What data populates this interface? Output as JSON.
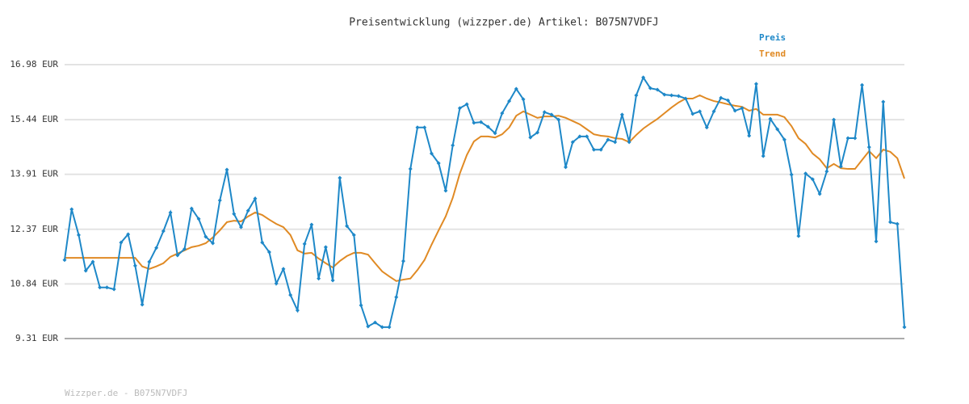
{
  "chart_data": {
    "type": "line",
    "title": "Preisentwicklung (wizzper.de) Artikel: B075N7VDFJ",
    "ylim": [
      9.31,
      16.98
    ],
    "yticks": [
      {
        "value": 9.31,
        "label": "9.31 EUR"
      },
      {
        "value": 10.84,
        "label": "10.84 EUR"
      },
      {
        "value": 12.37,
        "label": "12.37 EUR"
      },
      {
        "value": 13.91,
        "label": "13.91 EUR"
      },
      {
        "value": 15.44,
        "label": "15.44 EUR"
      },
      {
        "value": 16.98,
        "label": "16.98 EUR"
      }
    ],
    "grid": true,
    "legend": "top-right",
    "series": [
      {
        "name": "Preis",
        "color": "#1e88c8",
        "markers": true,
        "values": [
          11.51,
          12.93,
          12.21,
          11.21,
          11.46,
          10.74,
          10.74,
          10.69,
          12.0,
          12.23,
          11.35,
          10.26,
          11.46,
          11.85,
          12.32,
          12.84,
          11.64,
          11.82,
          12.95,
          12.66,
          12.16,
          11.98,
          13.18,
          14.04,
          12.8,
          12.43,
          12.89,
          13.23,
          12.0,
          11.73,
          10.85,
          11.26,
          10.53,
          10.1,
          11.96,
          12.5,
          10.99,
          11.87,
          10.94,
          13.81,
          12.46,
          12.21,
          10.24,
          9.65,
          9.76,
          9.63,
          9.63,
          10.47,
          11.48,
          14.06,
          15.22,
          15.22,
          14.49,
          14.22,
          13.45,
          14.72,
          15.76,
          15.87,
          15.35,
          15.37,
          15.24,
          15.06,
          15.62,
          15.96,
          16.3,
          16.01,
          14.94,
          15.08,
          15.65,
          15.58,
          15.44,
          14.11,
          14.81,
          14.97,
          14.97,
          14.6,
          14.6,
          14.88,
          14.81,
          15.58,
          14.81,
          16.12,
          16.62,
          16.32,
          16.28,
          16.14,
          16.12,
          16.1,
          16.03,
          15.6,
          15.67,
          15.22,
          15.67,
          16.05,
          15.98,
          15.69,
          15.76,
          14.99,
          16.44,
          14.42,
          15.46,
          15.17,
          14.88,
          13.9,
          12.18,
          13.93,
          13.77,
          13.36,
          13.99,
          15.44,
          14.13,
          14.92,
          14.92,
          16.41,
          14.67,
          12.03,
          15.94,
          12.57,
          12.52,
          9.63
        ]
      },
      {
        "name": "Trend",
        "color": "#e08a24",
        "markers": false,
        "values": [
          11.57,
          11.57,
          11.57,
          11.57,
          11.57,
          11.57,
          11.57,
          11.57,
          11.57,
          11.57,
          11.57,
          11.33,
          11.26,
          11.33,
          11.42,
          11.6,
          11.69,
          11.78,
          11.87,
          11.91,
          11.98,
          12.14,
          12.34,
          12.57,
          12.61,
          12.59,
          12.73,
          12.84,
          12.77,
          12.64,
          12.52,
          12.43,
          12.21,
          11.78,
          11.69,
          11.71,
          11.55,
          11.42,
          11.3,
          11.48,
          11.62,
          11.71,
          11.71,
          11.66,
          11.42,
          11.19,
          11.05,
          10.92,
          10.96,
          10.99,
          11.23,
          11.51,
          11.94,
          12.34,
          12.73,
          13.25,
          13.93,
          14.45,
          14.83,
          14.97,
          14.97,
          14.94,
          15.03,
          15.22,
          15.55,
          15.67,
          15.58,
          15.49,
          15.53,
          15.53,
          15.55,
          15.49,
          15.4,
          15.31,
          15.17,
          15.03,
          14.99,
          14.97,
          14.92,
          14.9,
          14.81,
          15.01,
          15.19,
          15.33,
          15.46,
          15.62,
          15.78,
          15.92,
          16.03,
          16.03,
          16.12,
          16.03,
          15.96,
          15.92,
          15.87,
          15.83,
          15.8,
          15.69,
          15.74,
          15.58,
          15.58,
          15.58,
          15.51,
          15.26,
          14.92,
          14.76,
          14.49,
          14.33,
          14.08,
          14.2,
          14.08,
          14.06,
          14.06,
          14.31,
          14.56,
          14.36,
          14.6,
          14.54,
          14.36,
          13.79
        ]
      }
    ]
  },
  "footer": "Wizzper.de - B075N7VDFJ"
}
